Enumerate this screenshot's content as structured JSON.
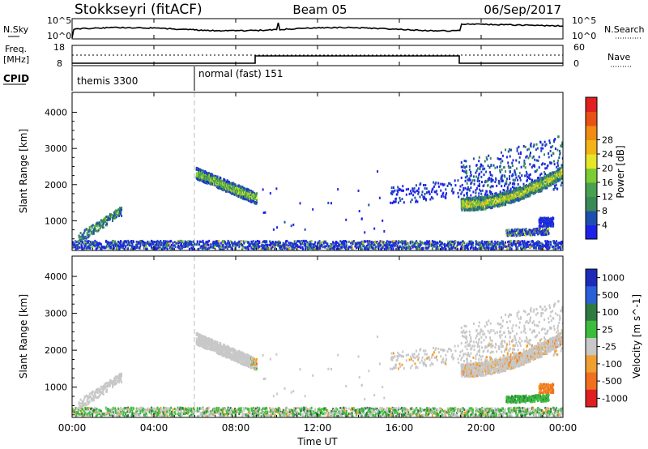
{
  "header": {
    "title": "Stokkseyri (fitACF)",
    "beam": "Beam 05",
    "date": "06/Sep/2017"
  },
  "top_panels": {
    "nsky": {
      "label": "N.Sky",
      "tick_top": "10^5",
      "tick_bottom": "10^0",
      "right_tick_top": "10^5",
      "right_tick_bottom": "10^0",
      "right_label": "N.Search"
    },
    "freq": {
      "label_line1": "Freq.",
      "label_line2": "[MHz]",
      "tick_top": "18",
      "tick_bottom": "8",
      "right_tick_top": "60",
      "right_tick_bottom": "0",
      "right_label": "Nave"
    },
    "cpid": {
      "label": "CPID",
      "modes": [
        {
          "name": "themis 3300",
          "start_hour": 0
        },
        {
          "name": "normal (fast) 151",
          "start_hour": 6
        }
      ]
    }
  },
  "chart_data": [
    {
      "type": "heatmap",
      "panel": "power",
      "ylabel": "Slant Range [km]",
      "yticks": [
        1000,
        2000,
        3000,
        4000
      ],
      "ylim": [
        180,
        4550
      ],
      "xlim_hours": [
        0,
        24
      ],
      "colorbar": {
        "label": "Power [dB]",
        "ticks": [
          "4",
          "8",
          "12",
          "16",
          "20",
          "24",
          "28"
        ],
        "colors": [
          "#1e22e8",
          "#1e4fb0",
          "#3a8a55",
          "#48a050",
          "#7ccc33",
          "#e6e628",
          "#f2b416",
          "#f08c12",
          "#e85016",
          "#e02020"
        ]
      },
      "echo_regions": [
        {
          "name": "near-range ground band",
          "hours": [
            0,
            24
          ],
          "range_km": [
            180,
            450
          ]
        },
        {
          "name": "early arc",
          "hours": [
            0.2,
            2.5
          ],
          "range_km": [
            400,
            1250
          ]
        },
        {
          "name": "post-06 arc",
          "hours": [
            6,
            9
          ],
          "range_km": [
            1400,
            2450
          ]
        },
        {
          "name": "evening arcs",
          "hours": [
            16,
            24
          ],
          "range_km": [
            1200,
            3500
          ]
        },
        {
          "name": "late low band",
          "hours": [
            21,
            23.5
          ],
          "range_km": [
            600,
            900
          ]
        }
      ]
    },
    {
      "type": "heatmap",
      "panel": "velocity",
      "ylabel": "Slant Range [km]",
      "yticks": [
        1000,
        2000,
        3000,
        4000
      ],
      "ylim": [
        180,
        4550
      ],
      "xlim_hours": [
        0,
        24
      ],
      "xticks": [
        "00:00",
        "04:00",
        "08:00",
        "12:00",
        "16:00",
        "20:00",
        "00:00"
      ],
      "xlabel": "Time UT",
      "colorbar": {
        "label": "Velocity [m s^-1]",
        "ticks": [
          "1000",
          "500",
          "100",
          "25",
          "-25",
          "-100",
          "-500",
          "-1000"
        ],
        "colors": [
          "#1e2ab8",
          "#2a60d8",
          "#2e7a40",
          "#3cbc3c",
          "#c8c8c8",
          "#f0a030",
          "#f07020",
          "#e02020"
        ]
      }
    }
  ]
}
